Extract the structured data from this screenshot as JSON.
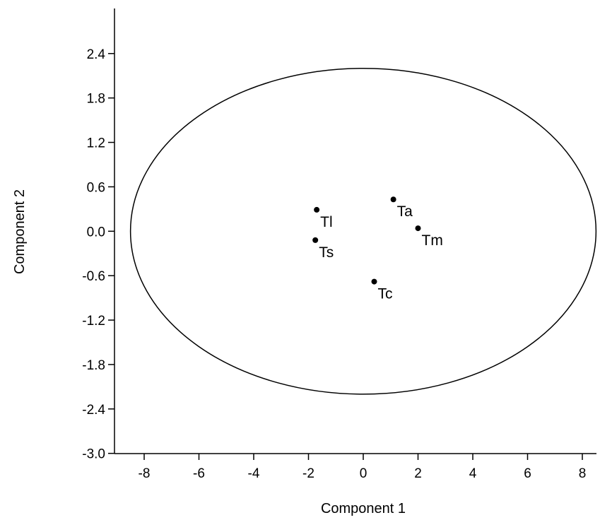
{
  "chart_data": {
    "type": "scatter",
    "xlabel": "Component 1",
    "ylabel": "Component 2",
    "xlim": [
      -9.2,
      8.4
    ],
    "ylim": [
      -3.0,
      3.0
    ],
    "x_ticks": [
      "-8",
      "-6",
      "-4",
      "-2",
      "0",
      "2",
      "4",
      "6",
      "8"
    ],
    "x_tick_values": [
      -8,
      -6,
      -4,
      -2,
      0,
      2,
      4,
      6,
      8
    ],
    "y_ticks": [
      "2.4",
      "1.8",
      "1.2",
      "0.6",
      "0.0",
      "-0.6",
      "-1.2",
      "-1.8",
      "-2.4",
      "-3.0"
    ],
    "y_tick_values": [
      2.4,
      1.8,
      1.2,
      0.6,
      0.0,
      -0.6,
      -1.2,
      -1.8,
      -2.4,
      -3.0
    ],
    "grid": false,
    "confidence_ellipse": {
      "center": [
        0,
        0
      ],
      "semi_axis_x": 8.5,
      "semi_axis_y": 2.2
    },
    "points": [
      {
        "label": "Tl",
        "x": -1.7,
        "y": 0.29
      },
      {
        "label": "Ts",
        "x": -1.75,
        "y": -0.12
      },
      {
        "label": "Ta",
        "x": 1.1,
        "y": 0.43
      },
      {
        "label": "Tm",
        "x": 2.0,
        "y": 0.04
      },
      {
        "label": "Tc",
        "x": 0.4,
        "y": -0.68
      }
    ]
  }
}
